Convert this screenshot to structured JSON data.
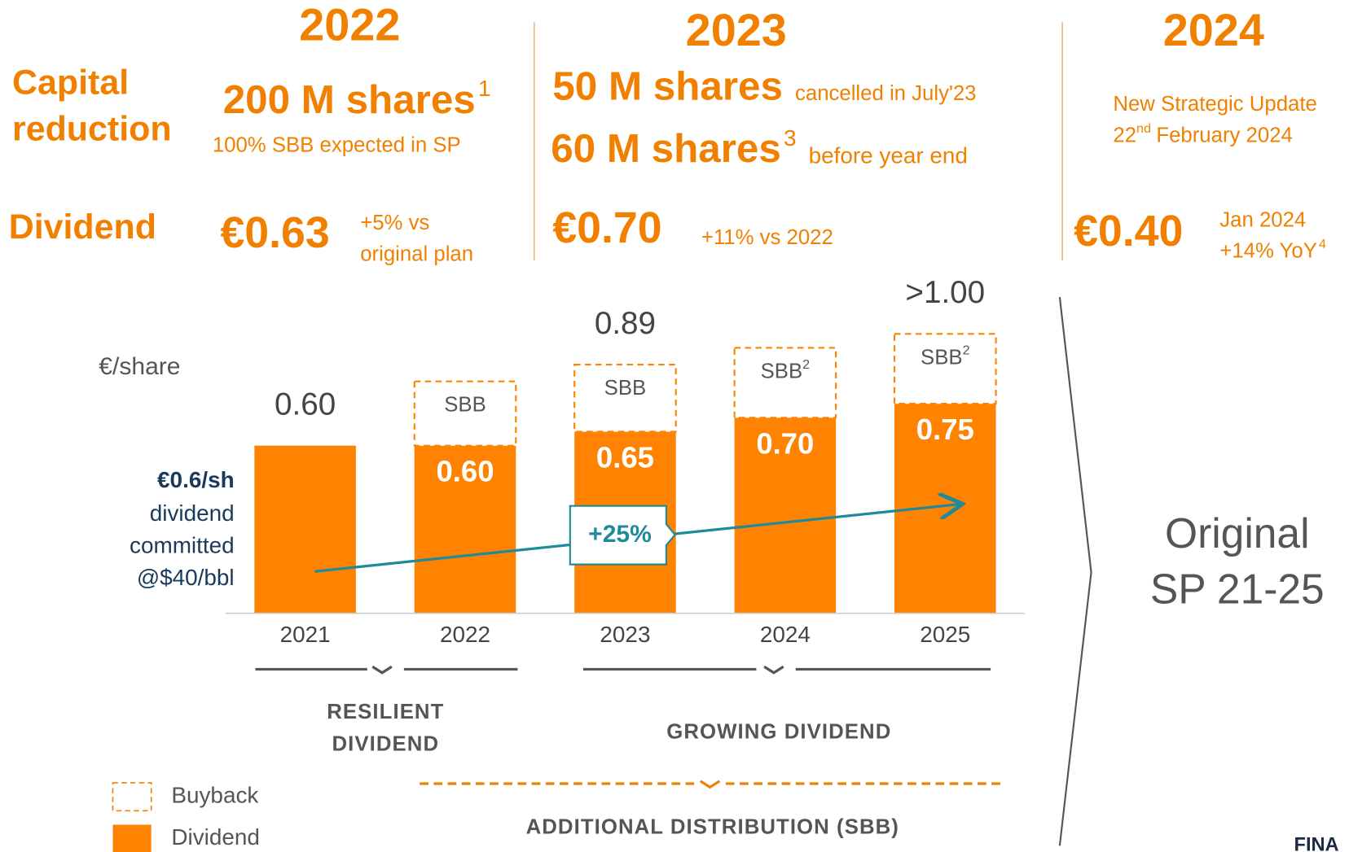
{
  "columns": [
    "2022",
    "2023",
    "2024"
  ],
  "capital_reduction_label": [
    "Capital",
    "reduction"
  ],
  "dividend_label": "Dividend",
  "capital_reduction": {
    "y2022": {
      "main": "200 M shares",
      "note": "1",
      "sub": "100% SBB expected in SP"
    },
    "y2023": [
      {
        "main": "50 M shares",
        "sub": "cancelled in July'23"
      },
      {
        "main": "60 M shares",
        "note": "3",
        "sub": "before year end"
      }
    ],
    "y2024": {
      "line1": "New Strategic Update",
      "day": "22",
      "suffix": "nd",
      "rest": "February 2024"
    }
  },
  "dividends": {
    "y2022": {
      "amount": "€0.63",
      "sub": [
        "+5% vs",
        "original plan"
      ]
    },
    "y2023": {
      "amount": "€0.70",
      "sub": "+11% vs 2022"
    },
    "y2024": {
      "amount": "€0.40",
      "sub": [
        "Jan 2024",
        "+14% YoY"
      ],
      "note": "4"
    }
  },
  "chart_data": {
    "type": "bar",
    "stacked": true,
    "unit_label": "€/share",
    "categories": [
      "2021",
      "2022",
      "2023",
      "2024",
      "2025"
    ],
    "series": [
      {
        "name": "Dividend",
        "color": "#ff8200",
        "style": "solid",
        "values": [
          0.6,
          0.6,
          0.65,
          0.7,
          0.75
        ],
        "value_labels": [
          null,
          "0.60",
          "0.65",
          "0.70",
          "0.75"
        ]
      },
      {
        "name": "Buyback",
        "color": "#ff8200",
        "style": "dashed",
        "values": [
          null,
          0.23,
          0.24,
          0.25,
          0.25
        ],
        "segment_labels": [
          null,
          "SBB",
          "SBB",
          "SBB",
          "SBB"
        ],
        "segment_notes": [
          null,
          null,
          null,
          "2",
          "2"
        ]
      }
    ],
    "total_labels": [
      "0.60",
      null,
      "0.89",
      null,
      ">1.00"
    ],
    "ylim": [
      0,
      1.2
    ],
    "annotation": "+25%",
    "commitment": {
      "highlight": "€0.6/sh",
      "lines": [
        "dividend",
        "committed",
        "@$40/bbl"
      ]
    },
    "groups": [
      [
        "RESILIENT",
        "DIVIDEND"
      ],
      [
        "GROWING DIVIDEND"
      ]
    ],
    "additional": "ADDITIONAL DISTRIBUTION (SBB)"
  },
  "side_note": [
    "Original",
    "SP 21-25"
  ],
  "footer": "FINA"
}
